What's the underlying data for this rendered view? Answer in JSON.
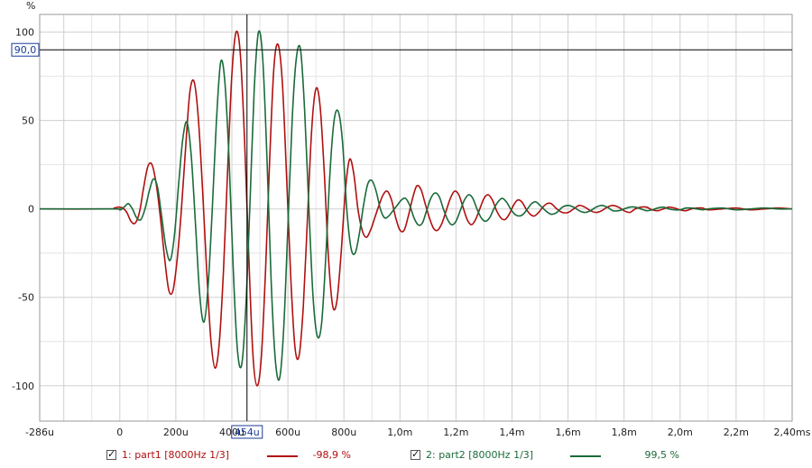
{
  "chart_data": {
    "type": "line",
    "ylabel": "%",
    "ylim": [
      -120,
      110
    ],
    "xlim_us": [
      -286,
      2400
    ],
    "y_ticks": [
      100,
      50,
      0,
      -50,
      -100
    ],
    "x_ticks": [
      {
        "v": -286,
        "label": "-286u"
      },
      {
        "v": 0,
        "label": "0"
      },
      {
        "v": 200,
        "label": "200u"
      },
      {
        "v": 400,
        "label": "400u"
      },
      {
        "v": 600,
        "label": "600u"
      },
      {
        "v": 800,
        "label": "800u"
      },
      {
        "v": 1000,
        "label": "1,0m"
      },
      {
        "v": 1200,
        "label": "1,2m"
      },
      {
        "v": 1400,
        "label": "1,4m"
      },
      {
        "v": 1600,
        "label": "1,6m"
      },
      {
        "v": 1800,
        "label": "1,8m"
      },
      {
        "v": 2000,
        "label": "2,0m"
      },
      {
        "v": 2200,
        "label": "2,2m"
      },
      {
        "v": 2400,
        "label": "2,40ms"
      }
    ],
    "grid": true,
    "cursor": {
      "x": 454,
      "x_label": "454u",
      "y": 90,
      "y_label": "90,0"
    },
    "series": [
      {
        "name": "1: part1 [8000Hz 1/3]",
        "color": "#b01010",
        "readout": "-98,9 %",
        "points": [
          [
            -286,
            0
          ],
          [
            -40,
            0
          ],
          [
            -20,
            0.5
          ],
          [
            -5,
            1
          ],
          [
            10,
            0.5
          ],
          [
            25,
            -2
          ],
          [
            40,
            -7
          ],
          [
            55,
            -8
          ],
          [
            70,
            -2
          ],
          [
            85,
            12
          ],
          [
            100,
            24
          ],
          [
            115,
            25
          ],
          [
            130,
            14
          ],
          [
            145,
            -5
          ],
          [
            160,
            -28
          ],
          [
            175,
            -46
          ],
          [
            190,
            -46
          ],
          [
            205,
            -28
          ],
          [
            220,
            0
          ],
          [
            235,
            35
          ],
          [
            250,
            66
          ],
          [
            265,
            72
          ],
          [
            280,
            52
          ],
          [
            295,
            12
          ],
          [
            310,
            -35
          ],
          [
            325,
            -74
          ],
          [
            340,
            -90
          ],
          [
            355,
            -76
          ],
          [
            370,
            -35
          ],
          [
            385,
            22
          ],
          [
            400,
            76
          ],
          [
            415,
            100
          ],
          [
            430,
            88
          ],
          [
            445,
            40
          ],
          [
            460,
            -25
          ],
          [
            475,
            -82
          ],
          [
            490,
            -100
          ],
          [
            505,
            -84
          ],
          [
            520,
            -35
          ],
          [
            535,
            28
          ],
          [
            550,
            80
          ],
          [
            565,
            93
          ],
          [
            580,
            72
          ],
          [
            595,
            20
          ],
          [
            610,
            -38
          ],
          [
            625,
            -78
          ],
          [
            640,
            -83
          ],
          [
            655,
            -55
          ],
          [
            670,
            -5
          ],
          [
            685,
            45
          ],
          [
            700,
            68
          ],
          [
            715,
            58
          ],
          [
            730,
            20
          ],
          [
            745,
            -28
          ],
          [
            760,
            -55
          ],
          [
            775,
            -52
          ],
          [
            790,
            -25
          ],
          [
            805,
            10
          ],
          [
            820,
            28
          ],
          [
            835,
            20
          ],
          [
            850,
            0
          ],
          [
            865,
            -12
          ],
          [
            880,
            -16
          ],
          [
            895,
            -12
          ],
          [
            910,
            -5
          ],
          [
            925,
            2
          ],
          [
            940,
            8
          ],
          [
            955,
            10
          ],
          [
            970,
            5
          ],
          [
            985,
            -5
          ],
          [
            1000,
            -12
          ],
          [
            1015,
            -12
          ],
          [
            1030,
            -4
          ],
          [
            1045,
            6
          ],
          [
            1060,
            13
          ],
          [
            1075,
            11
          ],
          [
            1090,
            3
          ],
          [
            1105,
            -5
          ],
          [
            1120,
            -11
          ],
          [
            1135,
            -12
          ],
          [
            1150,
            -8
          ],
          [
            1165,
            -1
          ],
          [
            1180,
            6
          ],
          [
            1195,
            10
          ],
          [
            1210,
            8
          ],
          [
            1225,
            1
          ],
          [
            1240,
            -6
          ],
          [
            1255,
            -9
          ],
          [
            1270,
            -6
          ],
          [
            1285,
            0
          ],
          [
            1300,
            6
          ],
          [
            1315,
            8
          ],
          [
            1330,
            5
          ],
          [
            1345,
            -1
          ],
          [
            1360,
            -5
          ],
          [
            1375,
            -6
          ],
          [
            1390,
            -3
          ],
          [
            1405,
            2
          ],
          [
            1420,
            5
          ],
          [
            1435,
            4
          ],
          [
            1450,
            0
          ],
          [
            1465,
            -3
          ],
          [
            1480,
            -4
          ],
          [
            1495,
            -2
          ],
          [
            1510,
            1
          ],
          [
            1525,
            3
          ],
          [
            1540,
            3
          ],
          [
            1560,
            0
          ],
          [
            1580,
            -2
          ],
          [
            1600,
            -2
          ],
          [
            1620,
            0
          ],
          [
            1640,
            2
          ],
          [
            1660,
            1
          ],
          [
            1680,
            -1
          ],
          [
            1700,
            -2
          ],
          [
            1720,
            -1
          ],
          [
            1740,
            1
          ],
          [
            1760,
            2
          ],
          [
            1780,
            1
          ],
          [
            1800,
            -1
          ],
          [
            1820,
            -2
          ],
          [
            1840,
            0
          ],
          [
            1860,
            1
          ],
          [
            1880,
            1
          ],
          [
            1900,
            -0.5
          ],
          [
            1920,
            -1
          ],
          [
            1940,
            0
          ],
          [
            1960,
            1
          ],
          [
            1980,
            0.5
          ],
          [
            2000,
            -0.5
          ],
          [
            2020,
            -1
          ],
          [
            2040,
            0
          ],
          [
            2060,
            0.5
          ],
          [
            2080,
            0.5
          ],
          [
            2100,
            -0.5
          ],
          [
            2150,
            0
          ],
          [
            2200,
            0.5
          ],
          [
            2250,
            -0.5
          ],
          [
            2300,
            0
          ],
          [
            2350,
            0.5
          ],
          [
            2400,
            0
          ]
        ]
      },
      {
        "name": "2: part2 [8000Hz 1/3]",
        "color": "#1a6b3a",
        "readout": "99,5 %",
        "points": [
          [
            -286,
            0
          ],
          [
            -20,
            0
          ],
          [
            0,
            -0.5
          ],
          [
            15,
            1
          ],
          [
            30,
            3
          ],
          [
            45,
            0
          ],
          [
            60,
            -5
          ],
          [
            75,
            -6
          ],
          [
            90,
            0
          ],
          [
            105,
            10
          ],
          [
            120,
            17
          ],
          [
            135,
            12
          ],
          [
            150,
            -5
          ],
          [
            165,
            -22
          ],
          [
            180,
            -29
          ],
          [
            195,
            -15
          ],
          [
            210,
            14
          ],
          [
            225,
            40
          ],
          [
            240,
            49
          ],
          [
            255,
            30
          ],
          [
            270,
            -8
          ],
          [
            285,
            -48
          ],
          [
            300,
            -64
          ],
          [
            315,
            -44
          ],
          [
            330,
            0
          ],
          [
            345,
            50
          ],
          [
            360,
            83
          ],
          [
            375,
            72
          ],
          [
            390,
            28
          ],
          [
            405,
            -35
          ],
          [
            420,
            -80
          ],
          [
            435,
            -88
          ],
          [
            450,
            -55
          ],
          [
            465,
            5
          ],
          [
            480,
            68
          ],
          [
            495,
            100
          ],
          [
            510,
            85
          ],
          [
            525,
            30
          ],
          [
            540,
            -40
          ],
          [
            555,
            -85
          ],
          [
            570,
            -96
          ],
          [
            585,
            -68
          ],
          [
            600,
            -10
          ],
          [
            615,
            50
          ],
          [
            630,
            85
          ],
          [
            645,
            90
          ],
          [
            660,
            55
          ],
          [
            675,
            0
          ],
          [
            690,
            -50
          ],
          [
            705,
            -72
          ],
          [
            720,
            -65
          ],
          [
            735,
            -28
          ],
          [
            750,
            20
          ],
          [
            765,
            50
          ],
          [
            780,
            55
          ],
          [
            795,
            38
          ],
          [
            810,
            0
          ],
          [
            825,
            -22
          ],
          [
            840,
            -25
          ],
          [
            855,
            -14
          ],
          [
            870,
            2
          ],
          [
            885,
            14
          ],
          [
            900,
            16
          ],
          [
            915,
            10
          ],
          [
            930,
            0
          ],
          [
            945,
            -5
          ],
          [
            960,
            -4
          ],
          [
            975,
            -1
          ],
          [
            990,
            2
          ],
          [
            1005,
            5
          ],
          [
            1020,
            6
          ],
          [
            1035,
            2
          ],
          [
            1050,
            -5
          ],
          [
            1065,
            -9
          ],
          [
            1080,
            -8
          ],
          [
            1095,
            -1
          ],
          [
            1110,
            6
          ],
          [
            1125,
            9
          ],
          [
            1140,
            7
          ],
          [
            1155,
            0
          ],
          [
            1170,
            -6
          ],
          [
            1185,
            -9
          ],
          [
            1200,
            -7
          ],
          [
            1215,
            -1
          ],
          [
            1230,
            5
          ],
          [
            1245,
            8
          ],
          [
            1260,
            6
          ],
          [
            1275,
            0
          ],
          [
            1290,
            -5
          ],
          [
            1305,
            -7
          ],
          [
            1320,
            -5
          ],
          [
            1335,
            0
          ],
          [
            1350,
            4
          ],
          [
            1365,
            6
          ],
          [
            1380,
            4
          ],
          [
            1395,
            0
          ],
          [
            1410,
            -3
          ],
          [
            1425,
            -4
          ],
          [
            1440,
            -3
          ],
          [
            1455,
            0
          ],
          [
            1470,
            3
          ],
          [
            1485,
            4
          ],
          [
            1500,
            2
          ],
          [
            1520,
            -1
          ],
          [
            1540,
            -3
          ],
          [
            1560,
            -2
          ],
          [
            1580,
            1
          ],
          [
            1600,
            2
          ],
          [
            1620,
            1
          ],
          [
            1640,
            -1
          ],
          [
            1660,
            -2
          ],
          [
            1680,
            -1
          ],
          [
            1700,
            1
          ],
          [
            1720,
            2
          ],
          [
            1740,
            1
          ],
          [
            1760,
            -1
          ],
          [
            1780,
            -1
          ],
          [
            1800,
            0
          ],
          [
            1820,
            1
          ],
          [
            1840,
            1
          ],
          [
            1860,
            0
          ],
          [
            1880,
            -1
          ],
          [
            1900,
            -0.5
          ],
          [
            1920,
            0.5
          ],
          [
            1940,
            1
          ],
          [
            1960,
            0
          ],
          [
            1980,
            -0.5
          ],
          [
            2000,
            -0.5
          ],
          [
            2020,
            0.5
          ],
          [
            2040,
            0.5
          ],
          [
            2060,
            0
          ],
          [
            2080,
            -0.5
          ],
          [
            2100,
            0
          ],
          [
            2150,
            0.5
          ],
          [
            2200,
            -0.5
          ],
          [
            2250,
            0
          ],
          [
            2300,
            0.5
          ],
          [
            2350,
            0
          ],
          [
            2400,
            0
          ]
        ]
      }
    ]
  },
  "legend": {
    "item1": {
      "label": "1: part1 [8000Hz 1/3]",
      "value": "-98,9 %",
      "color": "#b01010",
      "checked": true
    },
    "item2": {
      "label": "2: part2 [8000Hz 1/3]",
      "value": "99,5 %",
      "color": "#1a6b3a",
      "checked": true
    }
  }
}
